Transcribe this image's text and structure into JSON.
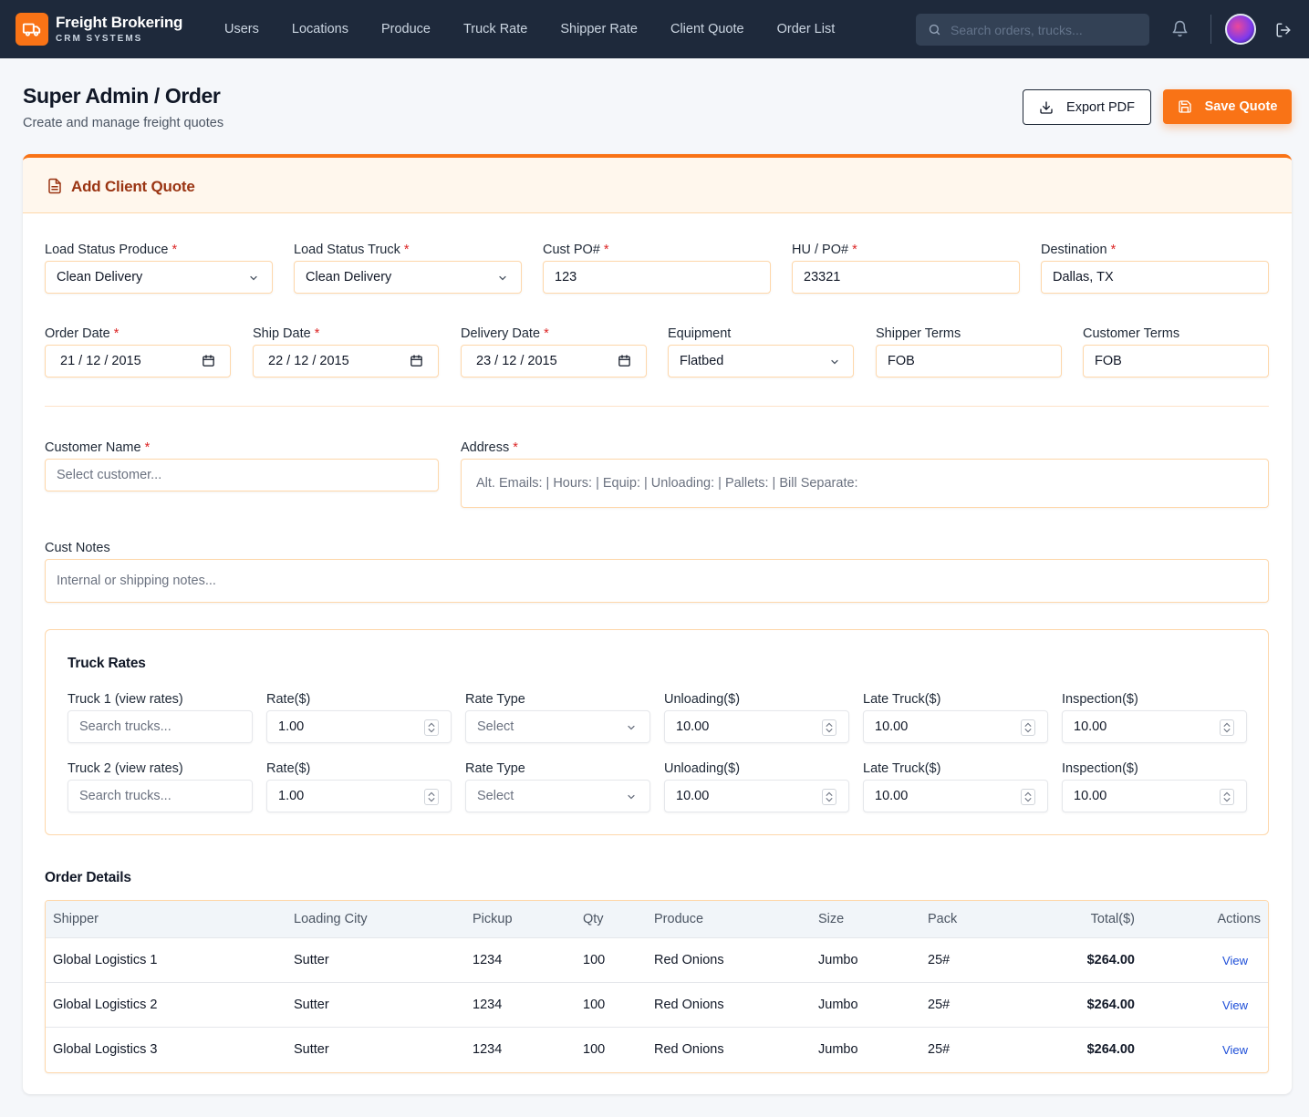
{
  "nav": {
    "brand_name": "Freight Brokering",
    "brand_sub": "CRM SYSTEMS",
    "links": [
      "Users",
      "Locations",
      "Produce",
      "Truck Rate",
      "Shipper Rate",
      "Client Quote",
      "Order List"
    ],
    "search_placeholder": "Search orders, trucks..."
  },
  "header": {
    "title": "Super Admin / Order",
    "subtitle": "Create and manage freight quotes",
    "export_label": "Export PDF",
    "save_label": "Save Quote"
  },
  "card": {
    "title": "Add Client Quote"
  },
  "form": {
    "load_status_produce": {
      "label": "Load Status Produce",
      "value": "Clean Delivery"
    },
    "load_status_truck": {
      "label": "Load Status Truck",
      "value": "Clean Delivery"
    },
    "cust_po": {
      "label": "Cust PO#",
      "value": "123"
    },
    "hu_po": {
      "label": "HU / PO#",
      "value": "23321"
    },
    "destination": {
      "label": "Destination",
      "value": "Dallas, TX"
    },
    "order_date": {
      "label": "Order Date",
      "value": "21 / 12 / 2015"
    },
    "ship_date": {
      "label": "Ship Date",
      "value": "22 / 12 / 2015"
    },
    "delivery_date": {
      "label": "Delivery Date",
      "value": "23 / 12 / 2015"
    },
    "equipment": {
      "label": "Equipment",
      "value": "Flatbed"
    },
    "shipper_terms": {
      "label": "Shipper Terms",
      "value": "FOB"
    },
    "customer_terms": {
      "label": "Customer Terms",
      "value": "FOB"
    },
    "customer_name": {
      "label": "Customer Name",
      "placeholder": "Select customer..."
    },
    "address": {
      "label": "Address",
      "value": "Alt. Emails: | Hours: | Equip: | Unloading: | Pallets: | Bill Separate:"
    },
    "cust_notes": {
      "label": "Cust Notes",
      "placeholder": "Internal or shipping notes..."
    },
    "required_mark": "*"
  },
  "truck_rates": {
    "title": "Truck Rates",
    "rows": [
      {
        "truck_label": "Truck 1 (view rates)",
        "truck_placeholder": "Search trucks...",
        "rate_label": "Rate($)",
        "rate": "1.00",
        "rate_type_label": "Rate Type",
        "rate_type": "Select",
        "unloading_label": "Unloading($)",
        "unloading": "10.00",
        "late_label": "Late Truck($)",
        "late": "10.00",
        "inspection_label": "Inspection($)",
        "inspection": "10.00"
      },
      {
        "truck_label": "Truck 2 (view rates)",
        "truck_placeholder": "Search trucks...",
        "rate_label": "Rate($)",
        "rate": "1.00",
        "rate_type_label": "Rate Type",
        "rate_type": "Select",
        "unloading_label": "Unloading($)",
        "unloading": "10.00",
        "late_label": "Late Truck($)",
        "late": "10.00",
        "inspection_label": "Inspection($)",
        "inspection": "10.00"
      }
    ]
  },
  "order_details": {
    "title": "Order Details",
    "columns": [
      "Shipper",
      "Loading City",
      "Pickup",
      "Qty",
      "Produce",
      "Size",
      "Pack",
      "Total($)",
      "Actions"
    ],
    "rows": [
      {
        "shipper": "Global Logistics 1",
        "city": "Sutter",
        "pickup": "1234",
        "qty": "100",
        "produce": "Red Onions",
        "size": "Jumbo",
        "pack": "25#",
        "total": "$264.00",
        "action": "View"
      },
      {
        "shipper": "Global Logistics 2",
        "city": "Sutter",
        "pickup": "1234",
        "qty": "100",
        "produce": "Red Onions",
        "size": "Jumbo",
        "pack": "25#",
        "total": "$264.00",
        "action": "View"
      },
      {
        "shipper": "Global Logistics 3",
        "city": "Sutter",
        "pickup": "1234",
        "qty": "100",
        "produce": "Red Onions",
        "size": "Jumbo",
        "pack": "25#",
        "total": "$264.00",
        "action": "View"
      }
    ]
  },
  "colors": {
    "accent": "#f97316",
    "nav_bg": "#1e293b",
    "link": "#1d4ed8"
  }
}
